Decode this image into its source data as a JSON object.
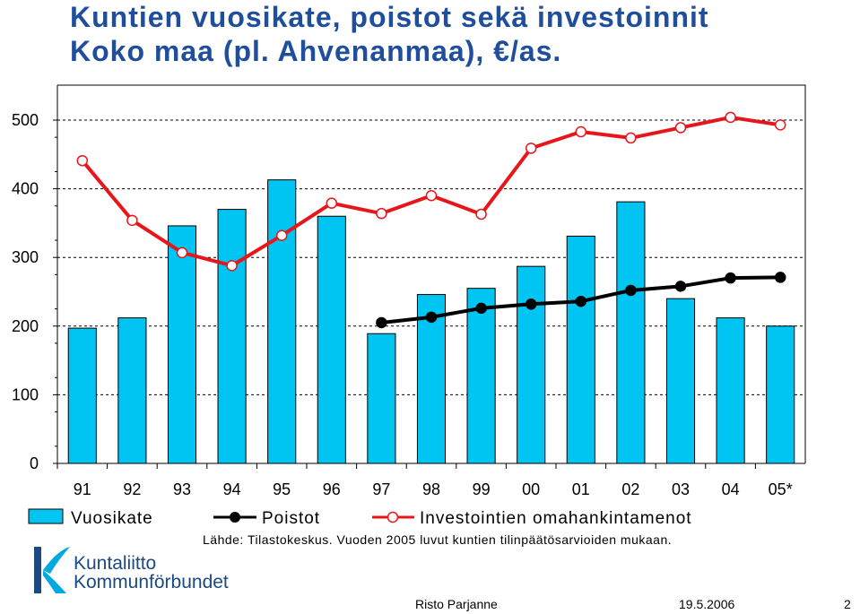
{
  "title": {
    "line1": "Kuntien vuosikate, poistot sekä investoinnit",
    "line2": "Koko maa (pl. Ahvenanmaa), €/as."
  },
  "chart_data": {
    "type": "bar",
    "categories": [
      "91",
      "92",
      "93",
      "94",
      "95",
      "96",
      "97",
      "98",
      "99",
      "00",
      "01",
      "02",
      "03",
      "04",
      "05*"
    ],
    "ylim": [
      0,
      500
    ],
    "yticks": [
      0,
      100,
      200,
      300,
      400,
      500
    ],
    "grid": true,
    "series": [
      {
        "name": "Vuosikate",
        "type": "bar",
        "color": "#00c4f2",
        "values": [
          197,
          212,
          346,
          370,
          413,
          360,
          189,
          246,
          255,
          287,
          331,
          381,
          240,
          212,
          200
        ]
      },
      {
        "name": "Poistot",
        "type": "line",
        "color": "#000000",
        "values": [
          null,
          null,
          null,
          null,
          null,
          null,
          205,
          213,
          226,
          232,
          236,
          252,
          258,
          270,
          271
        ]
      },
      {
        "name": "Investointien omahankintamenot",
        "type": "line",
        "color": "#e8161b",
        "values": [
          441,
          354,
          307,
          288,
          332,
          379,
          364,
          390,
          363,
          459,
          483,
          474,
          489,
          504,
          493
        ]
      }
    ],
    "legend_position": "bottom"
  },
  "source": "Lähde: Tilastokeskus. Vuoden 2005 luvut kuntien tilinpäätösarvioiden mukaan.",
  "logo": {
    "line1": "Kuntaliitto",
    "line2": "Kommunförbundet"
  },
  "footer": {
    "author": "Risto Parjanne",
    "date": "19.5.2006",
    "page": "2"
  }
}
